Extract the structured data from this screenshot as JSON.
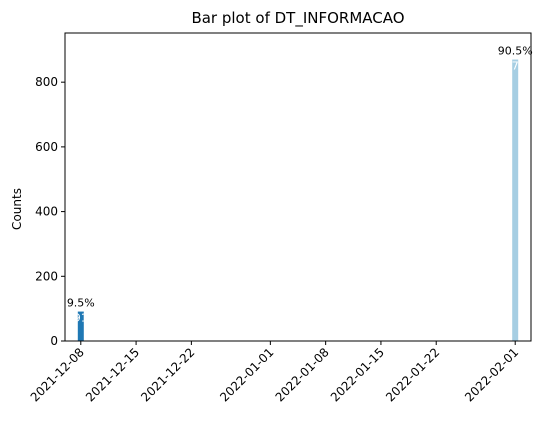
{
  "chart_data": {
    "type": "bar",
    "title": "Bar plot of DT_INFORMACAO",
    "xlabel": "",
    "ylabel": "Counts",
    "ylim": [
      0,
      952
    ],
    "yticks": [
      0,
      200,
      400,
      600,
      800
    ],
    "xlim": [
      "2021-12-06",
      "2022-02-03"
    ],
    "xticks": [
      "2021-12-08",
      "2021-12-15",
      "2021-12-22",
      "2022-01-01",
      "2022-01-08",
      "2022-01-15",
      "2022-01-22",
      "2022-02-01"
    ],
    "bars": [
      {
        "x": "2021-12-08",
        "value": 91,
        "count_label": "91",
        "percent_label": "9.5%",
        "color": "#1f78b4"
      },
      {
        "x": "2022-02-01",
        "value": 870,
        "count_label": "870",
        "percent_label": "90.5%",
        "color": "#a6cee3"
      }
    ],
    "grid": false
  }
}
